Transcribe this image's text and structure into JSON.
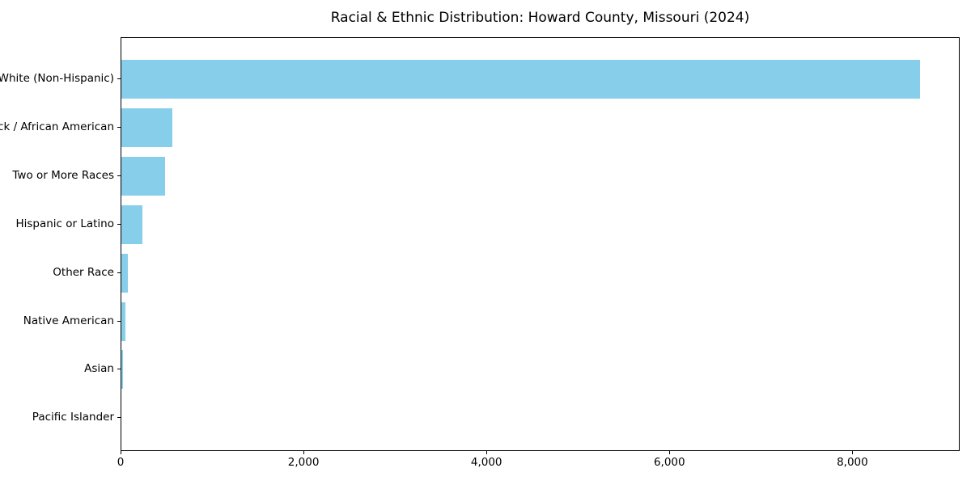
{
  "chart_data": {
    "type": "bar",
    "orientation": "horizontal",
    "title": "Racial & Ethnic Distribution: Howard County, Missouri (2024)",
    "categories": [
      "White (Non-Hispanic)",
      "Black / African American",
      "Two or More Races",
      "Hispanic or Latino",
      "Other Race",
      "Native American",
      "Asian",
      "Pacific Islander"
    ],
    "values": [
      8735,
      560,
      480,
      230,
      70,
      40,
      20,
      0
    ],
    "xlabel": "",
    "ylabel": "",
    "x_ticks": [
      0,
      2000,
      4000,
      6000,
      8000
    ],
    "x_tick_labels": [
      "0",
      "2,000",
      "4,000",
      "6,000",
      "8,000"
    ],
    "xlim": [
      0,
      9173
    ],
    "bar_color": "#87CEEB",
    "grid": false,
    "legend": false,
    "background_color": "#ffffff",
    "text_color": "#000000"
  }
}
